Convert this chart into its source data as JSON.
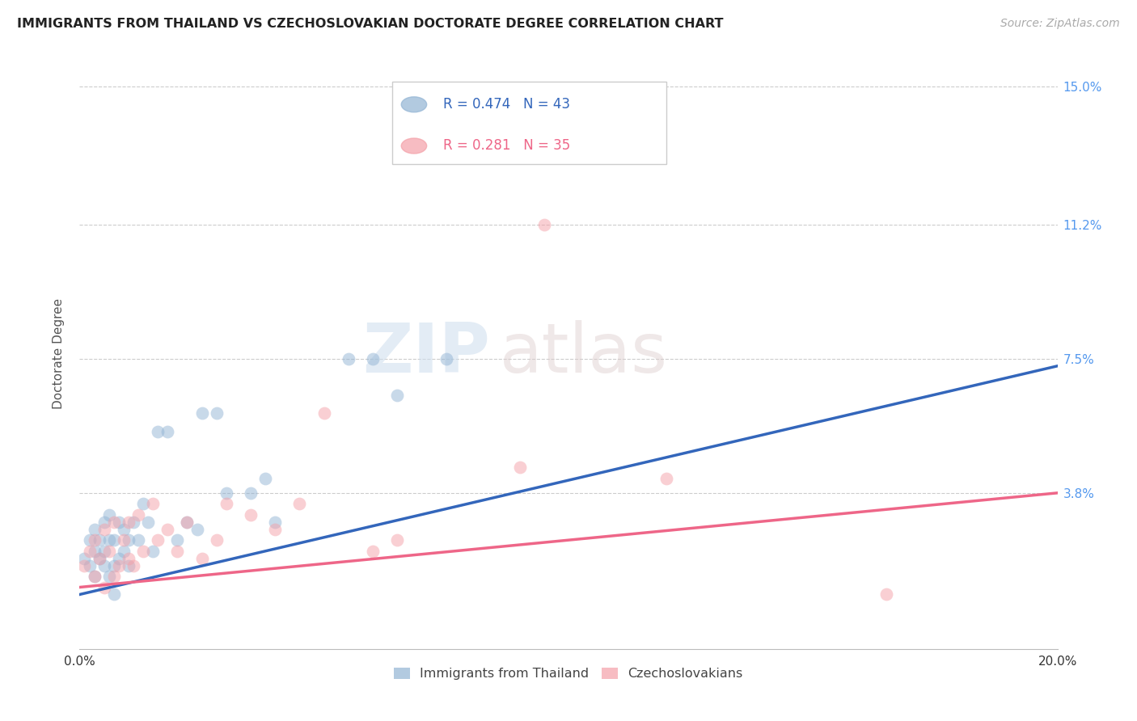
{
  "title": "IMMIGRANTS FROM THAILAND VS CZECHOSLOVAKIAN DOCTORATE DEGREE CORRELATION CHART",
  "source": "Source: ZipAtlas.com",
  "ylabel": "Doctorate Degree",
  "x_min": 0.0,
  "x_max": 0.2,
  "y_min": -0.005,
  "y_max": 0.158,
  "x_ticks": [
    0.0,
    0.05,
    0.1,
    0.15,
    0.2
  ],
  "x_tick_labels_ends": [
    "0.0%",
    "20.0%"
  ],
  "y_ticks": [
    0.038,
    0.075,
    0.112,
    0.15
  ],
  "y_tick_labels": [
    "3.8%",
    "7.5%",
    "11.2%",
    "15.0%"
  ],
  "legend_series1_label": "Immigrants from Thailand",
  "legend_series2_label": "Czechoslovakians",
  "legend_r1": "R = 0.474",
  "legend_n1": "N = 43",
  "legend_r2": "R = 0.281",
  "legend_n2": "N = 35",
  "color_blue": "#92B4D4",
  "color_pink": "#F4A0A8",
  "color_blue_line": "#3366BB",
  "color_pink_line": "#EE6688",
  "watermark_zip": "ZIP",
  "watermark_atlas": "atlas",
  "blue_line_start_y": 0.01,
  "blue_line_end_y": 0.073,
  "pink_line_start_y": 0.012,
  "pink_line_end_y": 0.038,
  "blue_x": [
    0.001,
    0.002,
    0.002,
    0.003,
    0.003,
    0.003,
    0.004,
    0.004,
    0.005,
    0.005,
    0.005,
    0.006,
    0.006,
    0.006,
    0.007,
    0.007,
    0.007,
    0.008,
    0.008,
    0.009,
    0.009,
    0.01,
    0.01,
    0.011,
    0.012,
    0.013,
    0.014,
    0.015,
    0.016,
    0.018,
    0.02,
    0.022,
    0.024,
    0.025,
    0.028,
    0.03,
    0.035,
    0.038,
    0.04,
    0.055,
    0.06,
    0.065,
    0.075
  ],
  "blue_y": [
    0.02,
    0.018,
    0.025,
    0.022,
    0.028,
    0.015,
    0.02,
    0.025,
    0.018,
    0.022,
    0.03,
    0.015,
    0.025,
    0.032,
    0.01,
    0.018,
    0.025,
    0.02,
    0.03,
    0.022,
    0.028,
    0.018,
    0.025,
    0.03,
    0.025,
    0.035,
    0.03,
    0.022,
    0.055,
    0.055,
    0.025,
    0.03,
    0.028,
    0.06,
    0.06,
    0.038,
    0.038,
    0.042,
    0.03,
    0.075,
    0.075,
    0.065,
    0.075
  ],
  "pink_x": [
    0.001,
    0.002,
    0.003,
    0.003,
    0.004,
    0.005,
    0.005,
    0.006,
    0.007,
    0.007,
    0.008,
    0.009,
    0.01,
    0.01,
    0.011,
    0.012,
    0.013,
    0.015,
    0.016,
    0.018,
    0.02,
    0.022,
    0.025,
    0.028,
    0.03,
    0.035,
    0.04,
    0.045,
    0.05,
    0.06,
    0.065,
    0.09,
    0.095,
    0.12,
    0.165
  ],
  "pink_y": [
    0.018,
    0.022,
    0.015,
    0.025,
    0.02,
    0.012,
    0.028,
    0.022,
    0.015,
    0.03,
    0.018,
    0.025,
    0.02,
    0.03,
    0.018,
    0.032,
    0.022,
    0.035,
    0.025,
    0.028,
    0.022,
    0.03,
    0.02,
    0.025,
    0.035,
    0.032,
    0.028,
    0.035,
    0.06,
    0.022,
    0.025,
    0.045,
    0.112,
    0.042,
    0.01
  ]
}
